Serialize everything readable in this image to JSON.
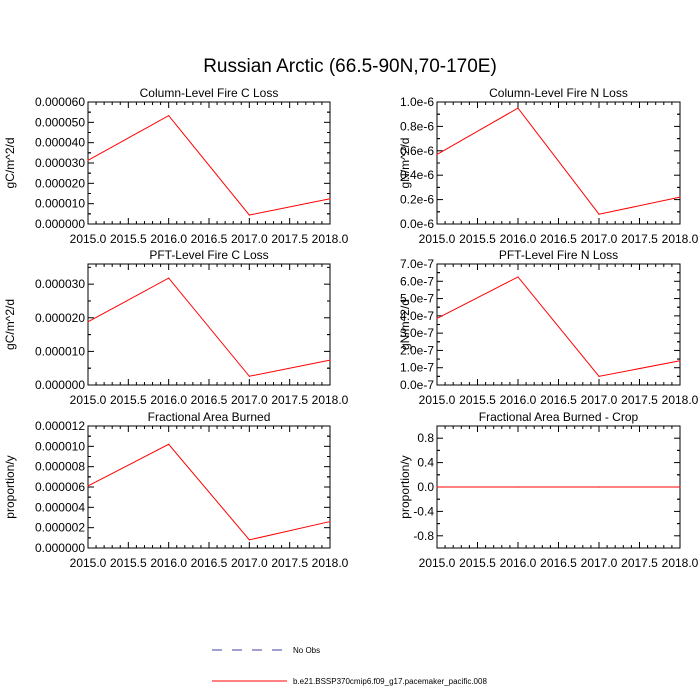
{
  "figure": {
    "title": "Russian Arctic (66.5-90N,70-170E)"
  },
  "chart_data": [
    {
      "type": "line",
      "title": "Column-Level Fire C Loss",
      "xlabel": "",
      "ylabel": "gC/m^2/d",
      "x": [
        2015.0,
        2016.0,
        2017.0,
        2018.0
      ],
      "xlim": [
        2015.0,
        2018.0
      ],
      "xticks": [
        "2015.0",
        "2015.5",
        "2016.0",
        "2016.5",
        "2017.0",
        "2017.5",
        "2018.0"
      ],
      "ylim": [
        0,
        6e-05
      ],
      "yticks": [
        "0.000000",
        "0.000010",
        "0.000020",
        "0.000030",
        "0.000040",
        "0.000050",
        "0.000060"
      ],
      "series": [
        {
          "name": "b.e21.BSSP370cmip6.f09_g17.pacemaker_pacific.008",
          "color": "#ff0000",
          "values": [
            3.13e-05,
            5.33e-05,
            4.4e-06,
            1.24e-05
          ]
        }
      ]
    },
    {
      "type": "line",
      "title": "Column-Level Fire N Loss",
      "xlabel": "",
      "ylabel": "gN/m^2/d",
      "x": [
        2015.0,
        2016.0,
        2017.0,
        2018.0
      ],
      "xlim": [
        2015.0,
        2018.0
      ],
      "xticks": [
        "2015.0",
        "2015.5",
        "2016.0",
        "2016.5",
        "2017.0",
        "2017.5",
        "2018.0"
      ],
      "ylim": [
        0,
        1e-06
      ],
      "yticks": [
        "0.0e-6",
        "0.2e-6",
        "0.4e-6",
        "0.6e-6",
        "0.8e-6",
        "1.0e-6"
      ],
      "series": [
        {
          "name": "b.e21.BSSP370cmip6.f09_g17.pacemaker_pacific.008",
          "color": "#ff0000",
          "values": [
            5.7e-07,
            9.5e-07,
            8e-08,
            2.2e-07
          ]
        }
      ]
    },
    {
      "type": "line",
      "title": "PFT-Level Fire C Loss",
      "xlabel": "",
      "ylabel": "gC/m^2/d",
      "x": [
        2015.0,
        2016.0,
        2017.0,
        2018.0
      ],
      "xlim": [
        2015.0,
        2018.0
      ],
      "xticks": [
        "2015.0",
        "2015.5",
        "2016.0",
        "2016.5",
        "2017.0",
        "2017.5",
        "2018.0"
      ],
      "ylim": [
        0,
        3.6e-05
      ],
      "yticks": [
        "0.000000",
        "0.000010",
        "0.000020",
        "0.000030"
      ],
      "ytick_values": [
        0,
        1e-05,
        2e-05,
        3e-05
      ],
      "series": [
        {
          "name": "b.e21.BSSP370cmip6.f09_g17.pacemaker_pacific.008",
          "color": "#ff0000",
          "values": [
            1.88e-05,
            3.18e-05,
            2.6e-06,
            7.4e-06
          ]
        }
      ]
    },
    {
      "type": "line",
      "title": "PFT-Level Fire N Loss",
      "xlabel": "",
      "ylabel": "gN/m^2/d",
      "x": [
        2015.0,
        2016.0,
        2017.0,
        2018.0
      ],
      "xlim": [
        2015.0,
        2018.0
      ],
      "xticks": [
        "2015.0",
        "2015.5",
        "2016.0",
        "2016.5",
        "2017.0",
        "2017.5",
        "2018.0"
      ],
      "ylim": [
        0,
        7e-07
      ],
      "yticks": [
        "0.0e-7",
        "1.0e-7",
        "2.0e-7",
        "3.0e-7",
        "4.0e-7",
        "5.0e-7",
        "6.0e-7",
        "7.0e-7"
      ],
      "series": [
        {
          "name": "b.e21.BSSP370cmip6.f09_g17.pacemaker_pacific.008",
          "color": "#ff0000",
          "values": [
            3.85e-07,
            6.25e-07,
            5e-08,
            1.4e-07
          ]
        }
      ]
    },
    {
      "type": "line",
      "title": "Fractional Area Burned",
      "xlabel": "",
      "ylabel": "proportion/y",
      "x": [
        2015.0,
        2016.0,
        2017.0,
        2018.0
      ],
      "xlim": [
        2015.0,
        2018.0
      ],
      "xticks": [
        "2015.0",
        "2015.5",
        "2016.0",
        "2016.5",
        "2017.0",
        "2017.5",
        "2018.0"
      ],
      "ylim": [
        0,
        1.2e-05
      ],
      "yticks": [
        "0.000000",
        "0.000002",
        "0.000004",
        "0.000006",
        "0.000008",
        "0.000010",
        "0.000012"
      ],
      "series": [
        {
          "name": "b.e21.BSSP370cmip6.f09_g17.pacemaker_pacific.008",
          "color": "#ff0000",
          "values": [
            6.1e-06,
            1.02e-05,
            8e-07,
            2.6e-06
          ]
        }
      ]
    },
    {
      "type": "line",
      "title": "Fractional Area Burned - Crop",
      "xlabel": "",
      "ylabel": "proportion/y",
      "x": [
        2015.0,
        2016.0,
        2017.0,
        2018.0
      ],
      "xlim": [
        2015.0,
        2018.0
      ],
      "xticks": [
        "2015.0",
        "2015.5",
        "2016.0",
        "2016.5",
        "2017.0",
        "2017.5",
        "2018.0"
      ],
      "ylim": [
        -1.0,
        1.0
      ],
      "yticks": [
        "-0.8",
        "-0.4",
        "0.0",
        "0.4",
        "0.8"
      ],
      "ytick_values": [
        -0.8,
        -0.4,
        0.0,
        0.4,
        0.8
      ],
      "series": [
        {
          "name": "b.e21.BSSP370cmip6.f09_g17.pacemaker_pacific.008",
          "color": "#ff0000",
          "values": [
            0,
            0,
            0,
            0
          ]
        }
      ]
    }
  ],
  "legend": {
    "placement": "bottom-center",
    "items": [
      {
        "label": "No Obs",
        "color": "#4040a0",
        "style": "dashed"
      },
      {
        "label": "b.e21.BSSP370cmip6.f09_g17.pacemaker_pacific.008",
        "color": "#ff0000",
        "style": "solid"
      }
    ]
  }
}
